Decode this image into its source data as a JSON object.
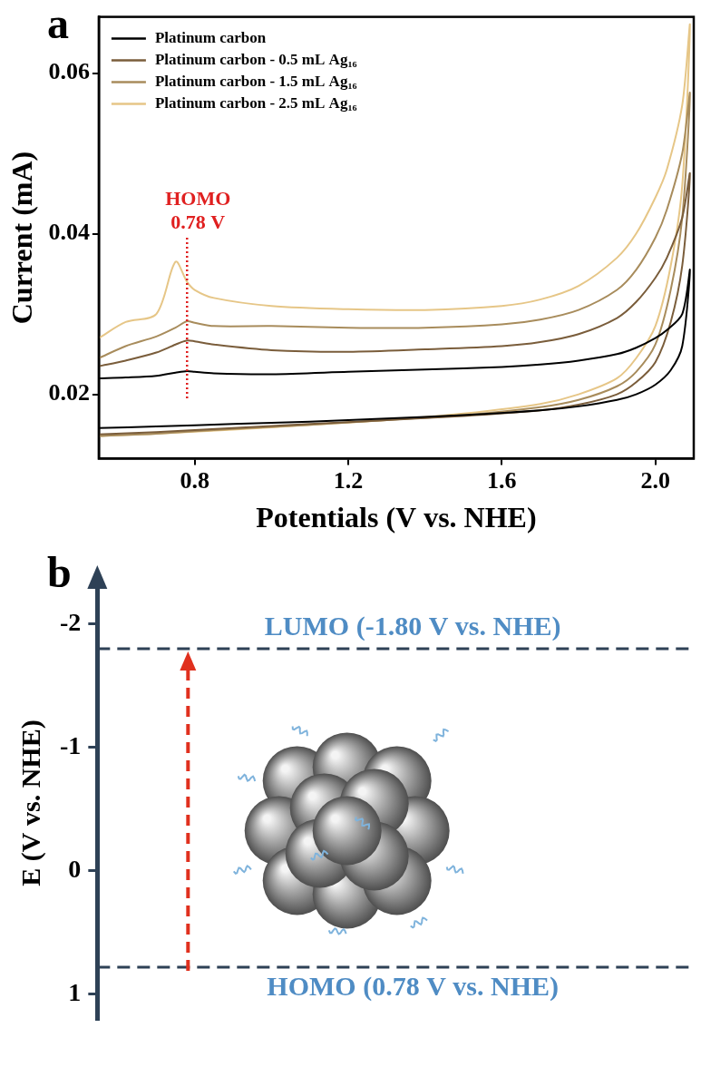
{
  "chart_data": [
    {
      "panel_label": "a",
      "type": "line",
      "x_label": "Potentials (V vs. NHE)",
      "y_label": "Current (mA)",
      "xlim": [
        0.55,
        2.1
      ],
      "xticks": [
        0.8,
        1.2,
        1.6,
        {
          "value": 2,
          "label": "2.0"
        }
      ],
      "ylim": [
        0.012,
        0.067
      ],
      "yticks": [
        0.02,
        0.04,
        0.06
      ],
      "grid": false,
      "legend": "upper left",
      "x": [
        0.55,
        0.7,
        0.9,
        1.1,
        1.3,
        1.5,
        1.7,
        1.8,
        1.9,
        1.95,
        2.0,
        2.04,
        2.07,
        2.09,
        2.07,
        2.03,
        2.0,
        1.95,
        1.9,
        1.8,
        1.7,
        1.6,
        1.4,
        1.2,
        1.0,
        0.85,
        0.8,
        0.78,
        0.75,
        0.7,
        0.62,
        0.55
      ],
      "series": [
        {
          "name": "Platinum carbon",
          "color": "#000000",
          "values": [
            0.0158,
            0.016,
            0.0163,
            0.0166,
            0.017,
            0.0174,
            0.018,
            0.0185,
            0.0193,
            0.02,
            0.0212,
            0.023,
            0.026,
            0.0355,
            0.03,
            0.028,
            0.027,
            0.0258,
            0.025,
            0.0242,
            0.0237,
            0.0234,
            0.0231,
            0.0228,
            0.0225,
            0.0226,
            0.0228,
            0.0229,
            0.0227,
            0.0223,
            0.0221,
            0.022
          ]
        },
        {
          "name": "Platinum carbon - 0.5 mL Ag₁₆",
          "color": "#7a5d3b",
          "values": [
            0.015,
            0.0153,
            0.0158,
            0.0163,
            0.0168,
            0.0173,
            0.018,
            0.0187,
            0.02,
            0.0215,
            0.024,
            0.029,
            0.036,
            0.0475,
            0.042,
            0.037,
            0.0345,
            0.0315,
            0.0295,
            0.0275,
            0.0265,
            0.026,
            0.0256,
            0.0253,
            0.0255,
            0.0262,
            0.0266,
            0.0267,
            0.0262,
            0.0252,
            0.0242,
            0.0235
          ]
        },
        {
          "name": "Platinum carbon - 1.5 mL Ag₁₆",
          "color": "#a88c5c",
          "values": [
            0.0148,
            0.0151,
            0.0157,
            0.0162,
            0.0168,
            0.0174,
            0.0184,
            0.0193,
            0.021,
            0.0228,
            0.0262,
            0.033,
            0.042,
            0.0575,
            0.05,
            0.043,
            0.0395,
            0.0355,
            0.033,
            0.0305,
            0.0293,
            0.0287,
            0.0283,
            0.0283,
            0.0285,
            0.0285,
            0.0289,
            0.0291,
            0.0283,
            0.0272,
            0.026,
            0.0245
          ]
        },
        {
          "name": "Platinum carbon - 2.5 mL Ag₁₆",
          "color": "#e6c687",
          "values": [
            0.0148,
            0.0151,
            0.0156,
            0.0162,
            0.0168,
            0.0176,
            0.0188,
            0.02,
            0.022,
            0.0245,
            0.0285,
            0.036,
            0.046,
            0.066,
            0.056,
            0.048,
            0.0445,
            0.04,
            0.037,
            0.0335,
            0.0318,
            0.031,
            0.0305,
            0.0306,
            0.031,
            0.032,
            0.033,
            0.034,
            0.0365,
            0.03,
            0.029,
            0.027
          ]
        }
      ],
      "annotations": [
        {
          "lines": [
            "HOMO",
            "0.78 V"
          ],
          "x": 0.78,
          "y": [
            0.0195,
            0.0395
          ],
          "color": "#e02020"
        }
      ]
    },
    {
      "panel_label": "b",
      "type": "energy_levels",
      "y_label": "E (V vs. NHE)",
      "ylim": [
        1.2,
        -2.3
      ],
      "yticks": [
        -2,
        -1,
        0,
        1
      ],
      "tick_labels": "y",
      "grid": false,
      "levels": [
        {
          "name": "LUMO",
          "value": -1.8,
          "label": "LUMO (-1.80 V vs. NHE)"
        },
        {
          "name": "HOMO",
          "value": 0.78,
          "label": "HOMO (0.78 V vs. NHE)"
        }
      ]
    }
  ]
}
